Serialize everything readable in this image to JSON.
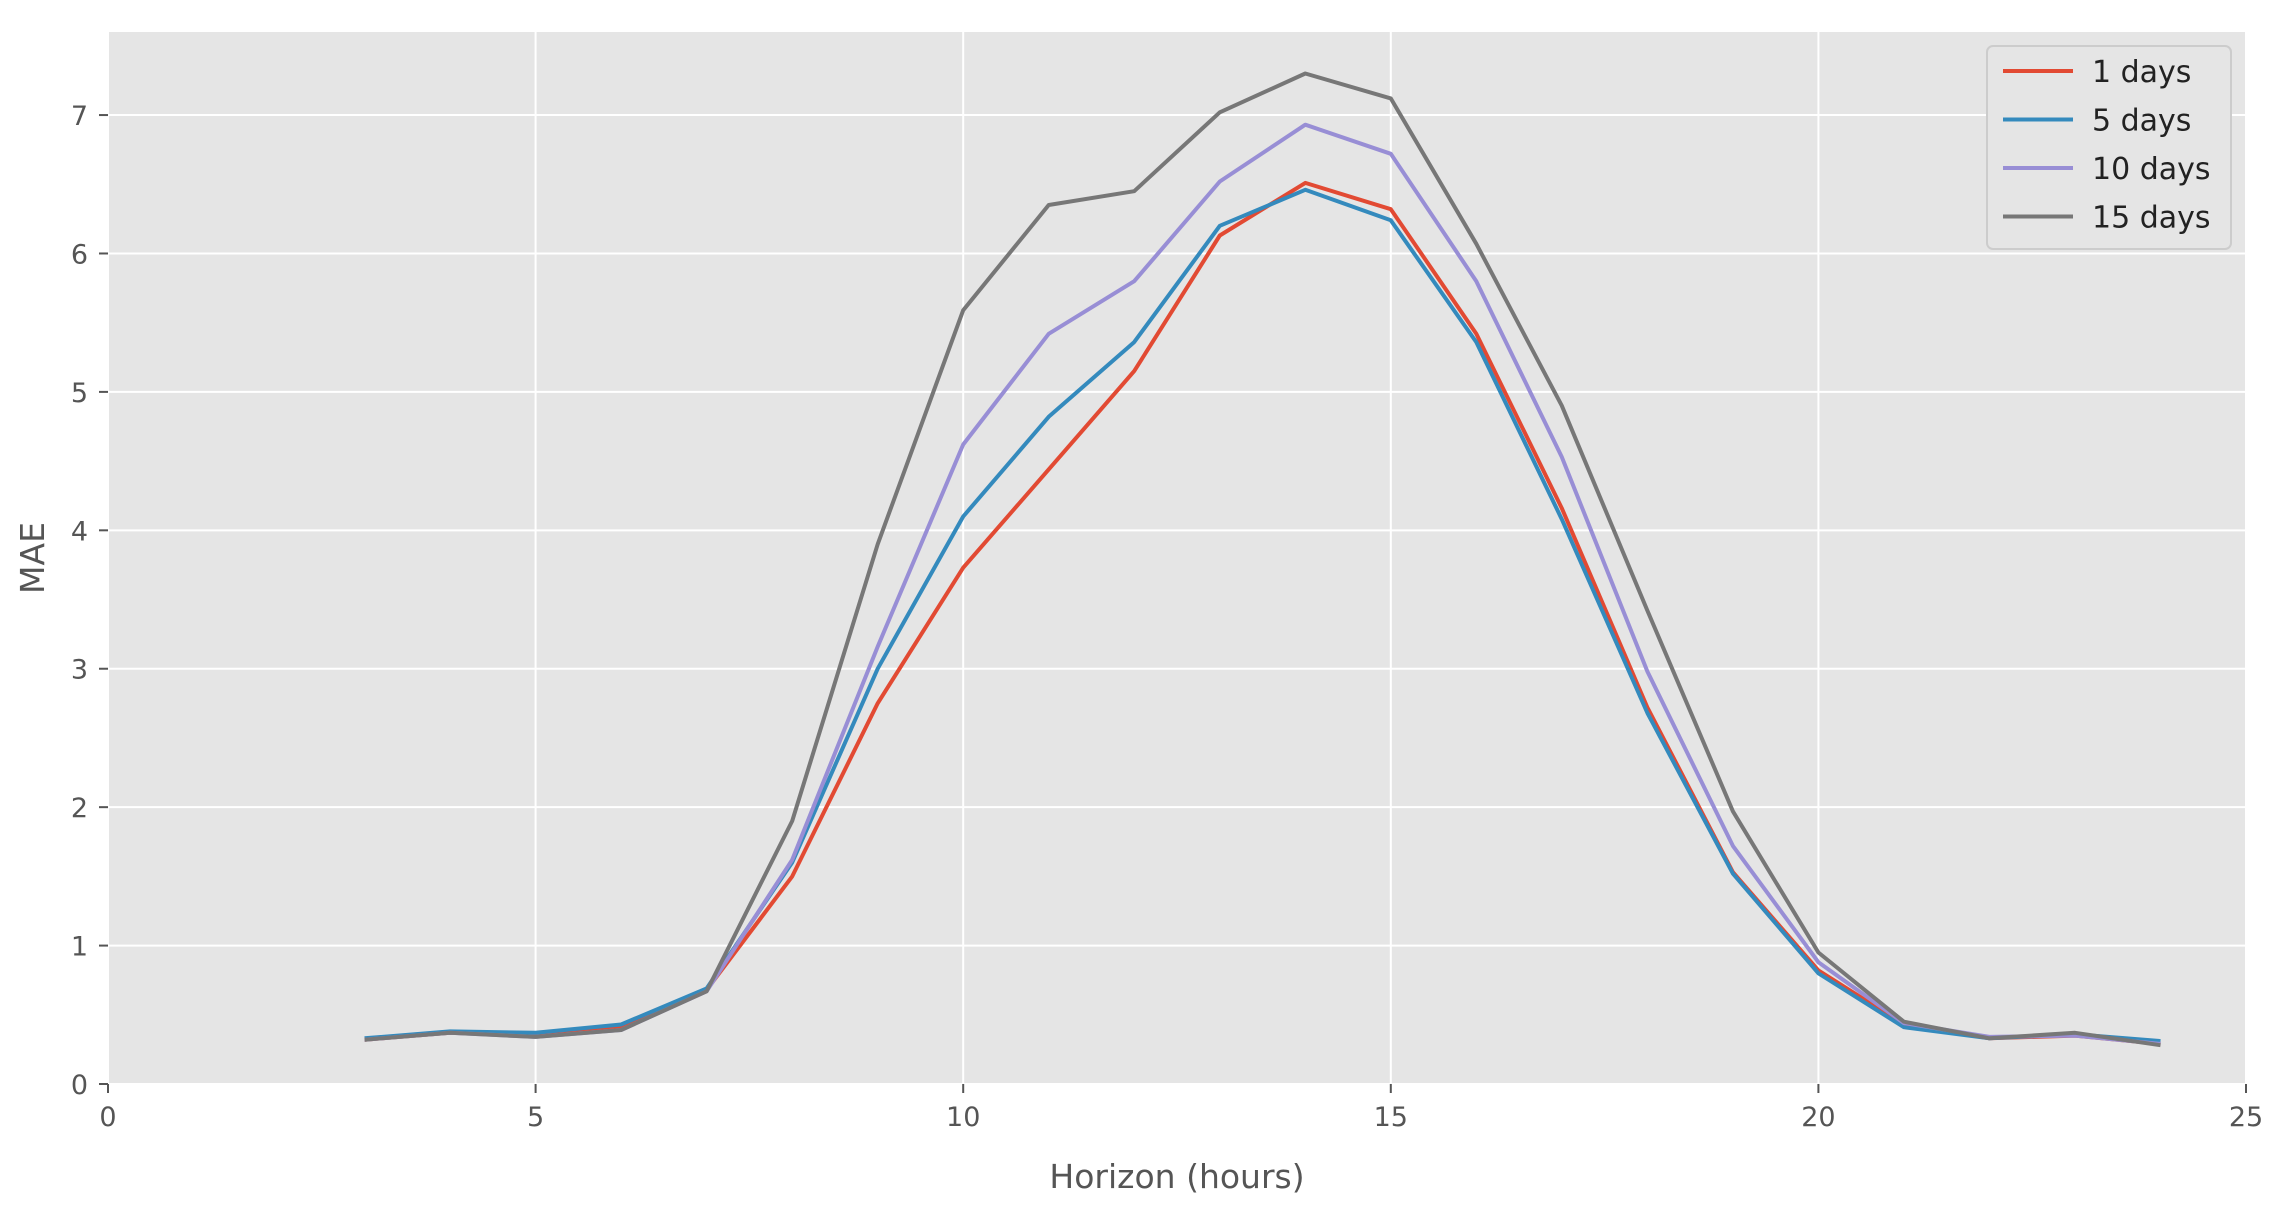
{
  "chart_data": {
    "type": "line",
    "title": "",
    "xlabel": "Horizon (hours)",
    "ylabel": "MAE",
    "xlim": [
      0,
      25
    ],
    "ylim": [
      0,
      7.6
    ],
    "xticks": [
      0,
      5,
      10,
      15,
      20,
      25
    ],
    "yticks": [
      0,
      1,
      2,
      3,
      4,
      5,
      6,
      7
    ],
    "grid": true,
    "legend_position": "top-right",
    "x": [
      3,
      4,
      5,
      6,
      7,
      8,
      9,
      10,
      11,
      12,
      13,
      14,
      15,
      16,
      17,
      18,
      19,
      20,
      21,
      22,
      23,
      24
    ],
    "series": [
      {
        "name": "1 days",
        "color": "#E24A33",
        "values": [
          0.32,
          0.37,
          0.35,
          0.41,
          0.68,
          1.5,
          2.75,
          3.73,
          4.44,
          5.15,
          6.13,
          6.51,
          6.32,
          5.42,
          4.16,
          2.72,
          1.53,
          0.82,
          0.43,
          0.33,
          0.35,
          0.29
        ]
      },
      {
        "name": "5 days",
        "color": "#348ABD",
        "values": [
          0.33,
          0.38,
          0.37,
          0.43,
          0.69,
          1.6,
          3.0,
          4.1,
          4.82,
          5.36,
          6.2,
          6.46,
          6.24,
          5.36,
          4.08,
          2.68,
          1.52,
          0.8,
          0.41,
          0.33,
          0.36,
          0.31
        ]
      },
      {
        "name": "10 days",
        "color": "#988ED5",
        "values": [
          0.32,
          0.37,
          0.34,
          0.39,
          0.67,
          1.62,
          3.16,
          4.62,
          5.42,
          5.8,
          6.52,
          6.93,
          6.72,
          5.8,
          4.53,
          2.98,
          1.72,
          0.88,
          0.44,
          0.34,
          0.35,
          0.29
        ]
      },
      {
        "name": "15 days",
        "color": "#777777",
        "values": [
          0.32,
          0.37,
          0.34,
          0.39,
          0.67,
          1.9,
          3.9,
          5.59,
          6.35,
          6.45,
          7.02,
          7.3,
          7.12,
          6.07,
          4.9,
          3.42,
          1.97,
          0.95,
          0.45,
          0.33,
          0.37,
          0.28
        ]
      }
    ]
  }
}
